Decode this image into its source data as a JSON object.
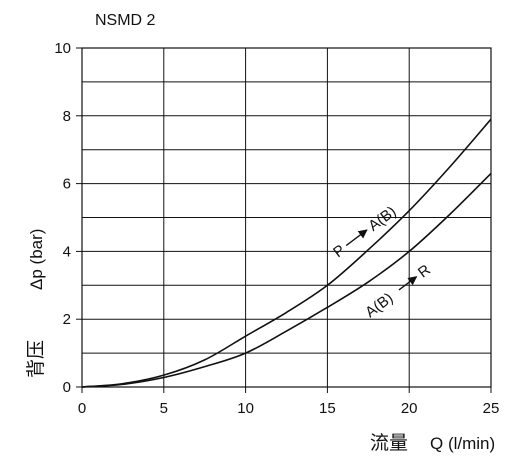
{
  "chart_data": {
    "type": "line",
    "title": "NSMD 2",
    "xlabel": "Q (l/min)",
    "xlabel_cn": "流量",
    "ylabel": "Δp (bar)",
    "ylabel_cn": "背压",
    "xlim": [
      0,
      25
    ],
    "ylim": [
      0,
      10
    ],
    "x_ticks": [
      0,
      5,
      10,
      15,
      20,
      25
    ],
    "y_ticks": [
      0,
      2,
      4,
      6,
      8,
      10
    ],
    "grid": true,
    "series": [
      {
        "name": "P → A(B)",
        "label_start": "P",
        "label_end": "A(B)",
        "x": [
          0,
          2.5,
          5,
          7.5,
          10,
          12.5,
          15,
          17.5,
          20,
          22.5,
          25
        ],
        "y": [
          0,
          0.1,
          0.35,
          0.8,
          1.5,
          2.2,
          3.0,
          4.05,
          5.2,
          6.5,
          7.9
        ]
      },
      {
        "name": "A(B) → R",
        "label_start": "A(B)",
        "label_end": "R",
        "x": [
          0,
          2.5,
          5,
          7.5,
          10,
          12.5,
          15,
          17.5,
          20,
          22.5,
          25
        ],
        "y": [
          0,
          0.08,
          0.28,
          0.6,
          1.0,
          1.65,
          2.35,
          3.1,
          4.0,
          5.1,
          6.3
        ]
      }
    ]
  }
}
